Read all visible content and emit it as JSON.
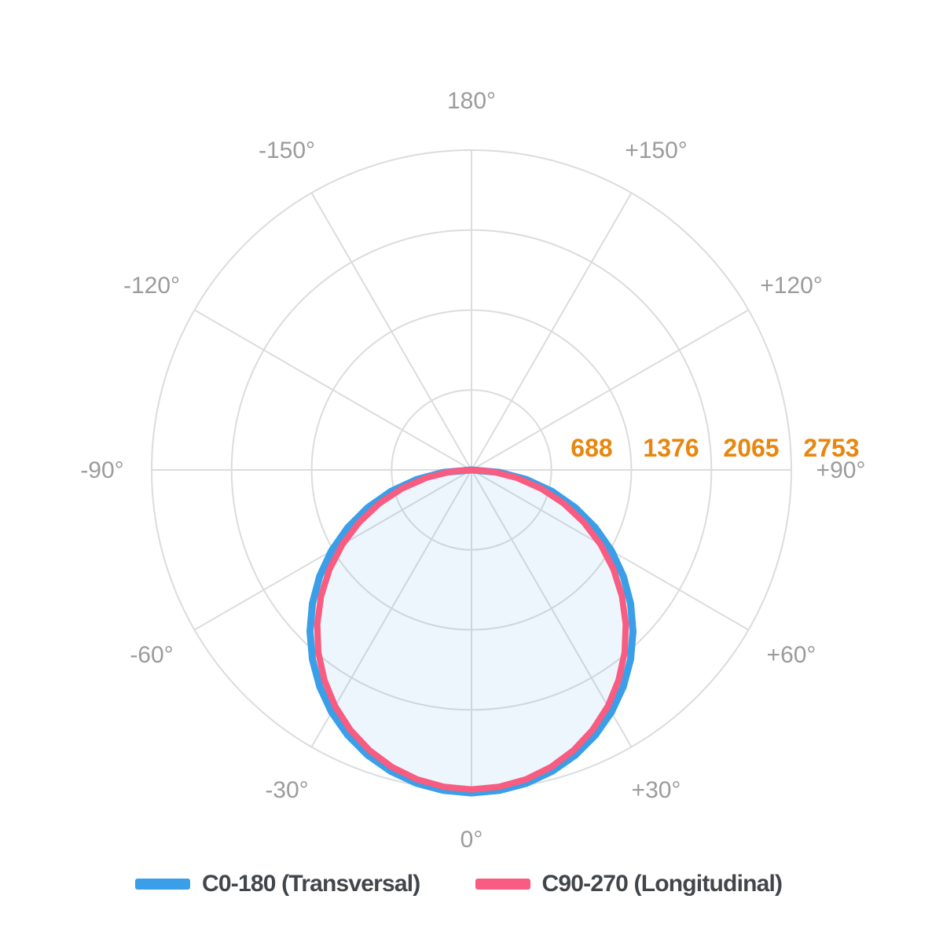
{
  "page": {
    "background": "#ffffff"
  },
  "chart_data": {
    "type": "polar",
    "subtype": "photometric-intensity-distribution",
    "angle_unit": "degrees",
    "zero_direction": "down",
    "r_max": 2753,
    "ring_values": [
      688,
      1376,
      2065,
      2753
    ],
    "ring_label_texts": [
      "688",
      "1376",
      "2065",
      "2753"
    ],
    "angle_labels": [
      {
        "angle": 180,
        "text": "180°"
      },
      {
        "angle": -150,
        "text": "-150°"
      },
      {
        "angle": 150,
        "text": "+150°"
      },
      {
        "angle": -120,
        "text": "-120°"
      },
      {
        "angle": 120,
        "text": "+120°"
      },
      {
        "angle": -90,
        "text": "-90°"
      },
      {
        "angle": 90,
        "text": "+90°"
      },
      {
        "angle": -60,
        "text": "-60°"
      },
      {
        "angle": 60,
        "text": "+60°"
      },
      {
        "angle": -30,
        "text": "-30°"
      },
      {
        "angle": 30,
        "text": "+30°"
      },
      {
        "angle": 0,
        "text": "0°"
      }
    ],
    "angles": [
      -90,
      -85,
      -80,
      -75,
      -70,
      -65,
      -60,
      -55,
      -50,
      -45,
      -40,
      -35,
      -30,
      -25,
      -20,
      -15,
      -10,
      -5,
      0,
      5,
      10,
      15,
      20,
      25,
      30,
      35,
      40,
      45,
      50,
      55,
      60,
      65,
      70,
      75,
      80,
      85,
      90
    ],
    "series": [
      {
        "name": "C0-180 (Transversal)",
        "color": "#3A9FE8",
        "stroke_width": 9,
        "filled": false,
        "values": [
          0,
          242,
          483,
          720,
          951,
          1175,
          1390,
          1595,
          1787,
          1966,
          2130,
          2277,
          2408,
          2520,
          2612,
          2685,
          2738,
          2769,
          2780,
          2769,
          2738,
          2685,
          2612,
          2520,
          2408,
          2277,
          2130,
          1966,
          1787,
          1595,
          1390,
          1175,
          951,
          720,
          483,
          242,
          0
        ]
      },
      {
        "name": "C90-270 (Longitudinal)",
        "color": "#F85C80",
        "stroke_width": 8,
        "filled": true,
        "fill_color": "rgba(58,159,232,0.09)",
        "values": [
          0,
          188,
          401,
          622,
          845,
          1066,
          1283,
          1492,
          1691,
          1878,
          2051,
          2208,
          2348,
          2468,
          2568,
          2647,
          2704,
          2738,
          2750,
          2738,
          2704,
          2647,
          2568,
          2468,
          2348,
          2208,
          2051,
          1878,
          1691,
          1492,
          1283,
          1066,
          845,
          622,
          401,
          188,
          0
        ]
      }
    ],
    "legend": [
      {
        "label": "C0-180 (Transversal)",
        "color": "#3A9FE8"
      },
      {
        "label": "C90-270 (Longitudinal)",
        "color": "#F85C80"
      }
    ],
    "legend_position": "bottom",
    "grid": {
      "color": "#DCDCDC",
      "ring_count": 4,
      "radial_step_deg": 30,
      "angle_label_color": "#9B9B9B",
      "ring_label_color": "#E8860D"
    }
  }
}
